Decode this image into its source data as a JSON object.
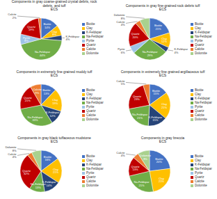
{
  "chart_data": [
    {
      "type": "pie",
      "title": "Components in gray coarse-grained crystal debris, rock\ndebris, and tuff\nECS",
      "categories": [
        "Biotite",
        "Clay",
        "K-Feldspar",
        "Na-Feldspar",
        "Pyrite",
        "Quartz",
        "Calcite",
        "Dolomite"
      ],
      "values": [
        14,
        8,
        4,
        44,
        8,
        19,
        2,
        0
      ],
      "value_labels": [
        "14%",
        "8%",
        "4%",
        "44%",
        "8%",
        "19%",
        "2%",
        null
      ],
      "colors": [
        "#4472C4",
        "#FFC000",
        "#264478",
        "#70AD47",
        "#9DC3E6",
        "#C00000",
        "#ED7D31",
        "#A9D18E"
      ],
      "data_labels": true,
      "legend": "right"
    },
    {
      "type": "pie",
      "title": "Components in gray fine-grained rock debris tuff\nECS",
      "categories": [
        "Biotite",
        "Clay",
        "K-Feldspar",
        "Na-Feldspar",
        "Pyrite",
        "Quartz",
        "Calcite",
        "Dolomite"
      ],
      "values": [
        21,
        12,
        4,
        29,
        6,
        20,
        4,
        8
      ],
      "value_labels": [
        "21%",
        "12%",
        "4%",
        "29%",
        "6%",
        "20%",
        "4%",
        "8%"
      ],
      "colors": [
        "#4472C4",
        "#FFC000",
        "#264478",
        "#70AD47",
        "#9DC3E6",
        "#C00000",
        "#ED7D31",
        "#A9D18E"
      ],
      "data_labels": true,
      "legend": "right"
    },
    {
      "type": "pie",
      "title": "Components in extremely fine grained muddy tuff\nECS",
      "categories": [
        "Biotite",
        "Clay",
        "K-Feldspar",
        "Na-Feldspar",
        "Pyrite",
        "Quartz",
        "Calcite",
        "Dolomite"
      ],
      "values": [
        13,
        19,
        12,
        33,
        0,
        21,
        9,
        0
      ],
      "value_labels": [
        "13%",
        "19%",
        "12%",
        "33%",
        null,
        "21%",
        "9%",
        null
      ],
      "colors": [
        "#4472C4",
        "#FFC000",
        "#264478",
        "#70AD47",
        "#9DC3E6",
        "#C00000",
        "#ED7D31",
        "#A9D18E"
      ],
      "data_labels": true,
      "legend": "right"
    },
    {
      "type": "pie",
      "title": "Components in extremely fine grained argillaceous tuff\nECS",
      "categories": [
        "Biotite",
        "Clay",
        "K-Feldspar",
        "Na-Feldspar",
        "Pyrite",
        "Quartz",
        "Calcite",
        "Dolomite"
      ],
      "values": [
        15,
        21,
        15,
        21,
        0,
        23,
        5,
        0
      ],
      "value_labels": [
        "15%",
        "21%",
        "15%",
        "21%",
        null,
        "23%",
        "5%",
        null
      ],
      "colors": [
        "#4472C4",
        "#FFC000",
        "#264478",
        "#70AD47",
        "#9DC3E6",
        "#C00000",
        "#ED7D31",
        "#A9D18E"
      ],
      "data_labels": true,
      "legend": "right"
    },
    {
      "type": "pie",
      "title": "Components in gray black tuffaceous mudstone\nECS",
      "categories": [
        "Biotite",
        "Clay",
        "K-Feldspar",
        "Na-Feldspar",
        "Pyrite",
        "Quartz",
        "Calcite",
        "Dolomite"
      ],
      "values": [
        16,
        21,
        14,
        13,
        0,
        32,
        4,
        8
      ],
      "value_labels": [
        "16%",
        "21%",
        "14%",
        "13%",
        null,
        "32%",
        "4%",
        "8%"
      ],
      "colors": [
        "#4472C4",
        "#FFC000",
        "#264478",
        "#70AD47",
        "#9DC3E6",
        "#C00000",
        "#ED7D31",
        "#A9D18E"
      ],
      "data_labels": true,
      "legend": "right"
    },
    {
      "type": "pie",
      "title": "Components in gray breccia\nECS",
      "categories": [
        "Biotite",
        "Clay",
        "K-Feldspar",
        "Na-Feldspar",
        "Pyrite",
        "Quartz",
        "Calcite",
        "Dolomite"
      ],
      "values": [
        20,
        21,
        0,
        21,
        0,
        13,
        4,
        8
      ],
      "value_labels": [
        "20%",
        "21%",
        null,
        "21%",
        null,
        "13%",
        "4%",
        "8%"
      ],
      "colors": [
        "#4472C4",
        "#FFC000",
        "#264478",
        "#70AD47",
        "#9DC3E6",
        "#C00000",
        "#ED7D31",
        "#A9D18E"
      ],
      "data_labels": true,
      "legend": "right"
    }
  ]
}
